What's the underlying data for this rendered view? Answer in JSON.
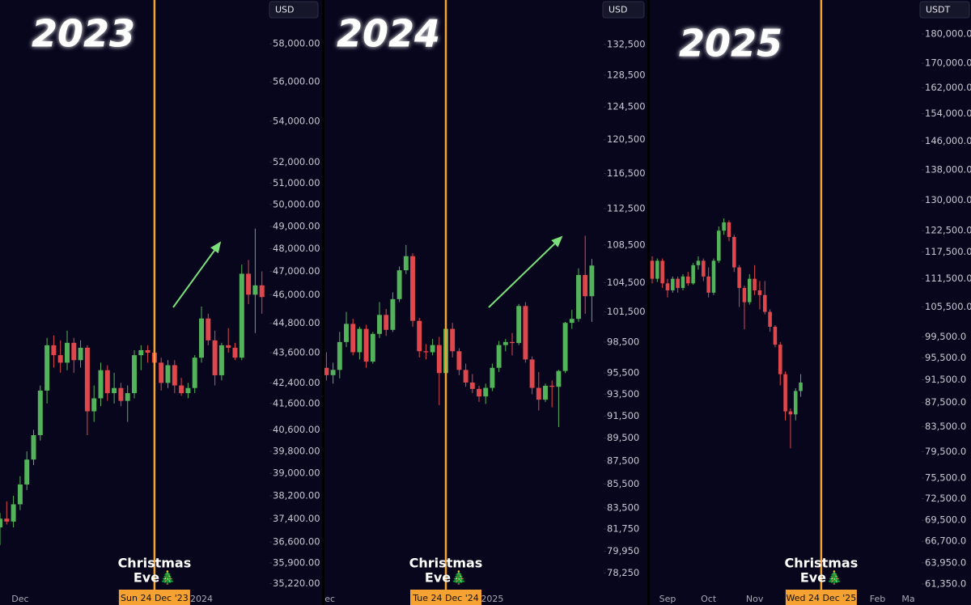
{
  "chart_data": [
    {
      "type": "candlestick",
      "title": "2023",
      "currency": "USD",
      "annotation": [
        "Christmas",
        "Eve🎄"
      ],
      "up_color": "#52b35a",
      "down_color": "#e0474c",
      "line_color": "#f5a233",
      "log_scale": true,
      "ylim": [
        35000,
        60400
      ],
      "yticks": [
        {
          "value": 58000,
          "label": "58,000.00"
        },
        {
          "value": 56000,
          "label": "56,000.00"
        },
        {
          "value": 54000,
          "label": "54,000.00"
        },
        {
          "value": 52000,
          "label": "52,000.00"
        },
        {
          "value": 51000,
          "label": "51,000.00"
        },
        {
          "value": 50000,
          "label": "50,000.00"
        },
        {
          "value": 49000,
          "label": "49,000.00"
        },
        {
          "value": 48000,
          "label": "48,000.00"
        },
        {
          "value": 47000,
          "label": "47,000.00"
        },
        {
          "value": 46000,
          "label": "46,000.00"
        },
        {
          "value": 44800,
          "label": "44,800.00"
        },
        {
          "value": 43600,
          "label": "43,600.00"
        },
        {
          "value": 42400,
          "label": "42,400.00"
        },
        {
          "value": 41600,
          "label": "41,600.00"
        },
        {
          "value": 40600,
          "label": "40,600.00"
        },
        {
          "value": 39800,
          "label": "39,800.00"
        },
        {
          "value": 39000,
          "label": "39,000.00"
        },
        {
          "value": 38200,
          "label": "38,200.00"
        },
        {
          "value": 37400,
          "label": "37,400.00"
        },
        {
          "value": 36600,
          "label": "36,600.00"
        },
        {
          "value": 35900,
          "label": "35,900.00"
        },
        {
          "value": 35220,
          "label": "35,220.00"
        }
      ],
      "categories": [
        null,
        null,
        null,
        "Dec",
        null,
        null,
        null,
        null,
        null,
        null,
        null,
        null,
        null,
        null,
        null,
        null,
        null,
        null,
        null,
        null,
        null,
        null,
        null,
        {
          "label": "Sun 24 Dec '23",
          "highlight": true
        },
        null,
        null,
        null,
        null,
        null,
        null,
        "2024",
        null,
        null,
        null,
        null,
        null,
        null,
        null,
        null,
        null
      ],
      "open": [
        37100,
        37400,
        37300,
        37900,
        38600,
        39500,
        40400,
        42100,
        43900,
        43500,
        43200,
        44000,
        43300,
        43800,
        41300,
        41800,
        42900,
        42000,
        42200,
        41700,
        42000,
        43500,
        43700,
        43600,
        43200,
        42400,
        43100,
        42300,
        42000,
        42200,
        43400,
        45000,
        44100,
        42700,
        43900,
        43800,
        43400,
        46900,
        46000,
        46400
      ],
      "high": [
        37600,
        38000,
        38200,
        38900,
        39800,
        40600,
        42300,
        44200,
        44300,
        44100,
        44500,
        44200,
        44100,
        43900,
        42300,
        43200,
        43100,
        42800,
        42400,
        42300,
        43700,
        43900,
        43900,
        43900,
        43400,
        43300,
        43300,
        42600,
        42400,
        43500,
        45500,
        45200,
        44500,
        44000,
        44600,
        44000,
        47300,
        47500,
        48900,
        47000
      ],
      "low": [
        36500,
        37200,
        37100,
        37700,
        38400,
        39300,
        40200,
        41600,
        43000,
        42800,
        42900,
        42800,
        43000,
        40400,
        40900,
        41500,
        41700,
        41600,
        41500,
        40900,
        41800,
        42900,
        43200,
        42600,
        42100,
        42200,
        42000,
        41900,
        41800,
        42000,
        43200,
        43900,
        42300,
        42500,
        43600,
        43300,
        43300,
        45600,
        44400,
        45200
      ],
      "close": [
        37400,
        37300,
        37900,
        38600,
        39500,
        40400,
        42100,
        43900,
        43500,
        43200,
        44000,
        43300,
        43800,
        41300,
        41800,
        42900,
        42000,
        42200,
        41700,
        42000,
        43500,
        43700,
        43600,
        43200,
        42400,
        43100,
        42300,
        42000,
        42200,
        43400,
        45000,
        44100,
        42700,
        43900,
        43800,
        43400,
        46900,
        46000,
        46400,
        45900
      ]
    },
    {
      "type": "candlestick",
      "title": "2024",
      "currency": "USD",
      "annotation": [
        "Christmas",
        "Eve🎄"
      ],
      "up_color": "#52b35a",
      "down_color": "#e0474c",
      "line_color": "#f5a233",
      "log_scale": true,
      "ylim": [
        76900,
        138500
      ],
      "yticks": [
        {
          "value": 132500,
          "label": "132,500"
        },
        {
          "value": 128500,
          "label": "128,500"
        },
        {
          "value": 124500,
          "label": "124,500"
        },
        {
          "value": 120500,
          "label": "120,500"
        },
        {
          "value": 116500,
          "label": "116,500"
        },
        {
          "value": 112500,
          "label": "112,500"
        },
        {
          "value": 108500,
          "label": "108,500"
        },
        {
          "value": 104500,
          "label": "104,500"
        },
        {
          "value": 101500,
          "label": "101,500"
        },
        {
          "value": 98500,
          "label": "98,500"
        },
        {
          "value": 95500,
          "label": "95,500"
        },
        {
          "value": 93500,
          "label": "93,500"
        },
        {
          "value": 91500,
          "label": "91,500"
        },
        {
          "value": 89500,
          "label": "89,500"
        },
        {
          "value": 87500,
          "label": "87,500"
        },
        {
          "value": 85500,
          "label": "85,500"
        },
        {
          "value": 83500,
          "label": "83,500"
        },
        {
          "value": 81750,
          "label": "81,750"
        },
        {
          "value": 79950,
          "label": "79,950"
        },
        {
          "value": 78250,
          "label": "78,250"
        }
      ],
      "categories": [
        "Dec",
        null,
        null,
        null,
        null,
        null,
        null,
        null,
        null,
        null,
        null,
        null,
        null,
        null,
        null,
        null,
        null,
        null,
        {
          "label": "Tue 24 Dec '24",
          "highlight": true
        },
        null,
        null,
        null,
        null,
        null,
        null,
        "2025",
        null,
        null,
        null,
        null,
        null,
        null,
        null,
        null,
        null,
        null,
        null,
        null,
        null,
        null,
        null
      ],
      "open": [
        96000,
        95300,
        95800,
        98500,
        100300,
        97500,
        99800,
        96600,
        99300,
        101200,
        99700,
        102800,
        105800,
        107300,
        100600,
        97600,
        97500,
        98200,
        95500,
        99800,
        97600,
        95800,
        94600,
        94000,
        93300,
        94100,
        96000,
        98200,
        98500,
        98400,
        102100,
        96800,
        94100,
        93000,
        94300,
        94200,
        95700,
        100400,
        100800,
        105300,
        103100
      ],
      "high": [
        97500,
        96500,
        99500,
        101500,
        100800,
        100000,
        100200,
        99500,
        102500,
        101800,
        103500,
        106200,
        108500,
        107600,
        100900,
        98300,
        98800,
        99000,
        100300,
        100400,
        97900,
        96400,
        95400,
        94300,
        94500,
        96400,
        98600,
        98800,
        99400,
        102300,
        102500,
        97100,
        95600,
        94500,
        94800,
        95800,
        100500,
        101700,
        106000,
        109500,
        107000
      ],
      "low": [
        94800,
        94500,
        95000,
        98000,
        97200,
        96800,
        96000,
        96400,
        98900,
        99100,
        99500,
        102500,
        105400,
        100000,
        97000,
        96800,
        97200,
        92500,
        95000,
        97000,
        95300,
        94200,
        93600,
        92800,
        92600,
        93800,
        95600,
        97600,
        97200,
        98200,
        96500,
        93500,
        92000,
        92800,
        92300,
        90500,
        95500,
        99800,
        100500,
        101300,
        100500
      ],
      "close": [
        95300,
        95800,
        98500,
        100300,
        97500,
        99800,
        96600,
        99300,
        101200,
        99700,
        102800,
        105800,
        107300,
        100600,
        97600,
        97500,
        98200,
        95500,
        99800,
        97600,
        95800,
        94600,
        94000,
        93300,
        94100,
        96000,
        98200,
        98500,
        98400,
        102100,
        96800,
        94100,
        93000,
        94300,
        94200,
        95700,
        100400,
        100800,
        105300,
        103100,
        106300
      ]
    },
    {
      "type": "candlestick",
      "title": "2025",
      "currency": "USDT",
      "annotation": [
        "Christmas",
        "Eve🎄"
      ],
      "up_color": "#52b35a",
      "down_color": "#e0474c",
      "line_color": "#f5a233",
      "log_scale": true,
      "ylim": [
        60580,
        192400
      ],
      "yticks": [
        {
          "value": 180000,
          "label": "180,000.0"
        },
        {
          "value": 170000,
          "label": "170,000.0"
        },
        {
          "value": 162000,
          "label": "162,000.0"
        },
        {
          "value": 154000,
          "label": "154,000.0"
        },
        {
          "value": 146000,
          "label": "146,000.0"
        },
        {
          "value": 138000,
          "label": "138,000.0"
        },
        {
          "value": 130000,
          "label": "130,000.0"
        },
        {
          "value": 122500,
          "label": "122,500.0"
        },
        {
          "value": 117500,
          "label": "117,500.0"
        },
        {
          "value": 111500,
          "label": "111,500.0"
        },
        {
          "value": 105500,
          "label": "105,500.0"
        },
        {
          "value": 99500,
          "label": "99,500.0"
        },
        {
          "value": 95500,
          "label": "95,500.0"
        },
        {
          "value": 91500,
          "label": "91,500.0"
        },
        {
          "value": 87500,
          "label": "87,500.0"
        },
        {
          "value": 83500,
          "label": "83,500.0"
        },
        {
          "value": 79500,
          "label": "79,500.0"
        },
        {
          "value": 75500,
          "label": "75,500.0"
        },
        {
          "value": 72500,
          "label": "72,500.0"
        },
        {
          "value": 69500,
          "label": "69,500.0"
        },
        {
          "value": 66700,
          "label": "66,700.0"
        },
        {
          "value": 63950,
          "label": "63,950.0"
        },
        {
          "value": 61350,
          "label": "61,350.0"
        }
      ],
      "categories": [
        null,
        null,
        null,
        "Sep",
        null,
        null,
        null,
        null,
        null,
        null,
        null,
        "Oct",
        null,
        null,
        null,
        null,
        null,
        null,
        null,
        null,
        "Nov",
        null,
        null,
        null,
        null,
        null,
        null,
        null,
        null,
        null,
        null,
        null,
        null,
        {
          "label": "Wed 24 Dec '25",
          "highlight": true
        },
        null,
        null,
        null,
        null,
        null,
        null,
        null,
        null,
        null,
        null,
        "Feb",
        null,
        null,
        null,
        null,
        null,
        "Ma",
        null
      ],
      "open": [
        115500,
        111500,
        115500,
        110500,
        109000,
        111500,
        109500,
        112000,
        110500,
        114500,
        115500,
        112000,
        108500,
        115500,
        122500,
        124500,
        121000,
        114000,
        109500,
        106500,
        111500,
        109000,
        108000,
        104500,
        101500,
        98000,
        92500,
        86000,
        85500,
        89500,
        null,
        null,
        null,
        null,
        null,
        null,
        null,
        null,
        null,
        null,
        null,
        null,
        null,
        null,
        null,
        null,
        null,
        null,
        null,
        null,
        null,
        null
      ],
      "high": [
        116500,
        116000,
        116000,
        111500,
        112000,
        112000,
        112500,
        113000,
        115000,
        116500,
        116000,
        114000,
        116000,
        123500,
        125500,
        125000,
        121500,
        114500,
        110000,
        112500,
        114500,
        111000,
        111000,
        105000,
        101800,
        98500,
        93000,
        86500,
        90000,
        92500,
        null,
        null,
        null,
        null,
        null,
        null,
        null,
        null,
        null,
        null,
        null,
        null,
        null,
        null,
        null,
        null,
        null,
        null,
        null,
        null,
        null,
        null
      ],
      "low": [
        110500,
        110800,
        109500,
        107500,
        108500,
        108500,
        109000,
        110000,
        110200,
        113500,
        111000,
        107500,
        108000,
        115000,
        121500,
        120000,
        113000,
        105500,
        101000,
        106000,
        108000,
        105000,
        104000,
        100500,
        97500,
        90500,
        84500,
        80000,
        84500,
        88500,
        null,
        null,
        null,
        null,
        null,
        null,
        null,
        null,
        null,
        null,
        null,
        null,
        null,
        null,
        null,
        null,
        null,
        null,
        null,
        null,
        null,
        null
      ],
      "close": [
        111500,
        115500,
        110500,
        109000,
        111500,
        109500,
        112000,
        110500,
        114500,
        115500,
        112000,
        108500,
        115500,
        122500,
        124500,
        121000,
        114000,
        109500,
        106500,
        111500,
        109000,
        108000,
        104500,
        101500,
        98000,
        92500,
        86000,
        85500,
        89500,
        91000,
        null,
        null,
        null,
        null,
        null,
        null,
        null,
        null,
        null,
        null,
        null,
        null,
        null,
        null,
        null,
        null,
        null,
        null,
        null,
        null,
        null,
        null
      ]
    }
  ]
}
